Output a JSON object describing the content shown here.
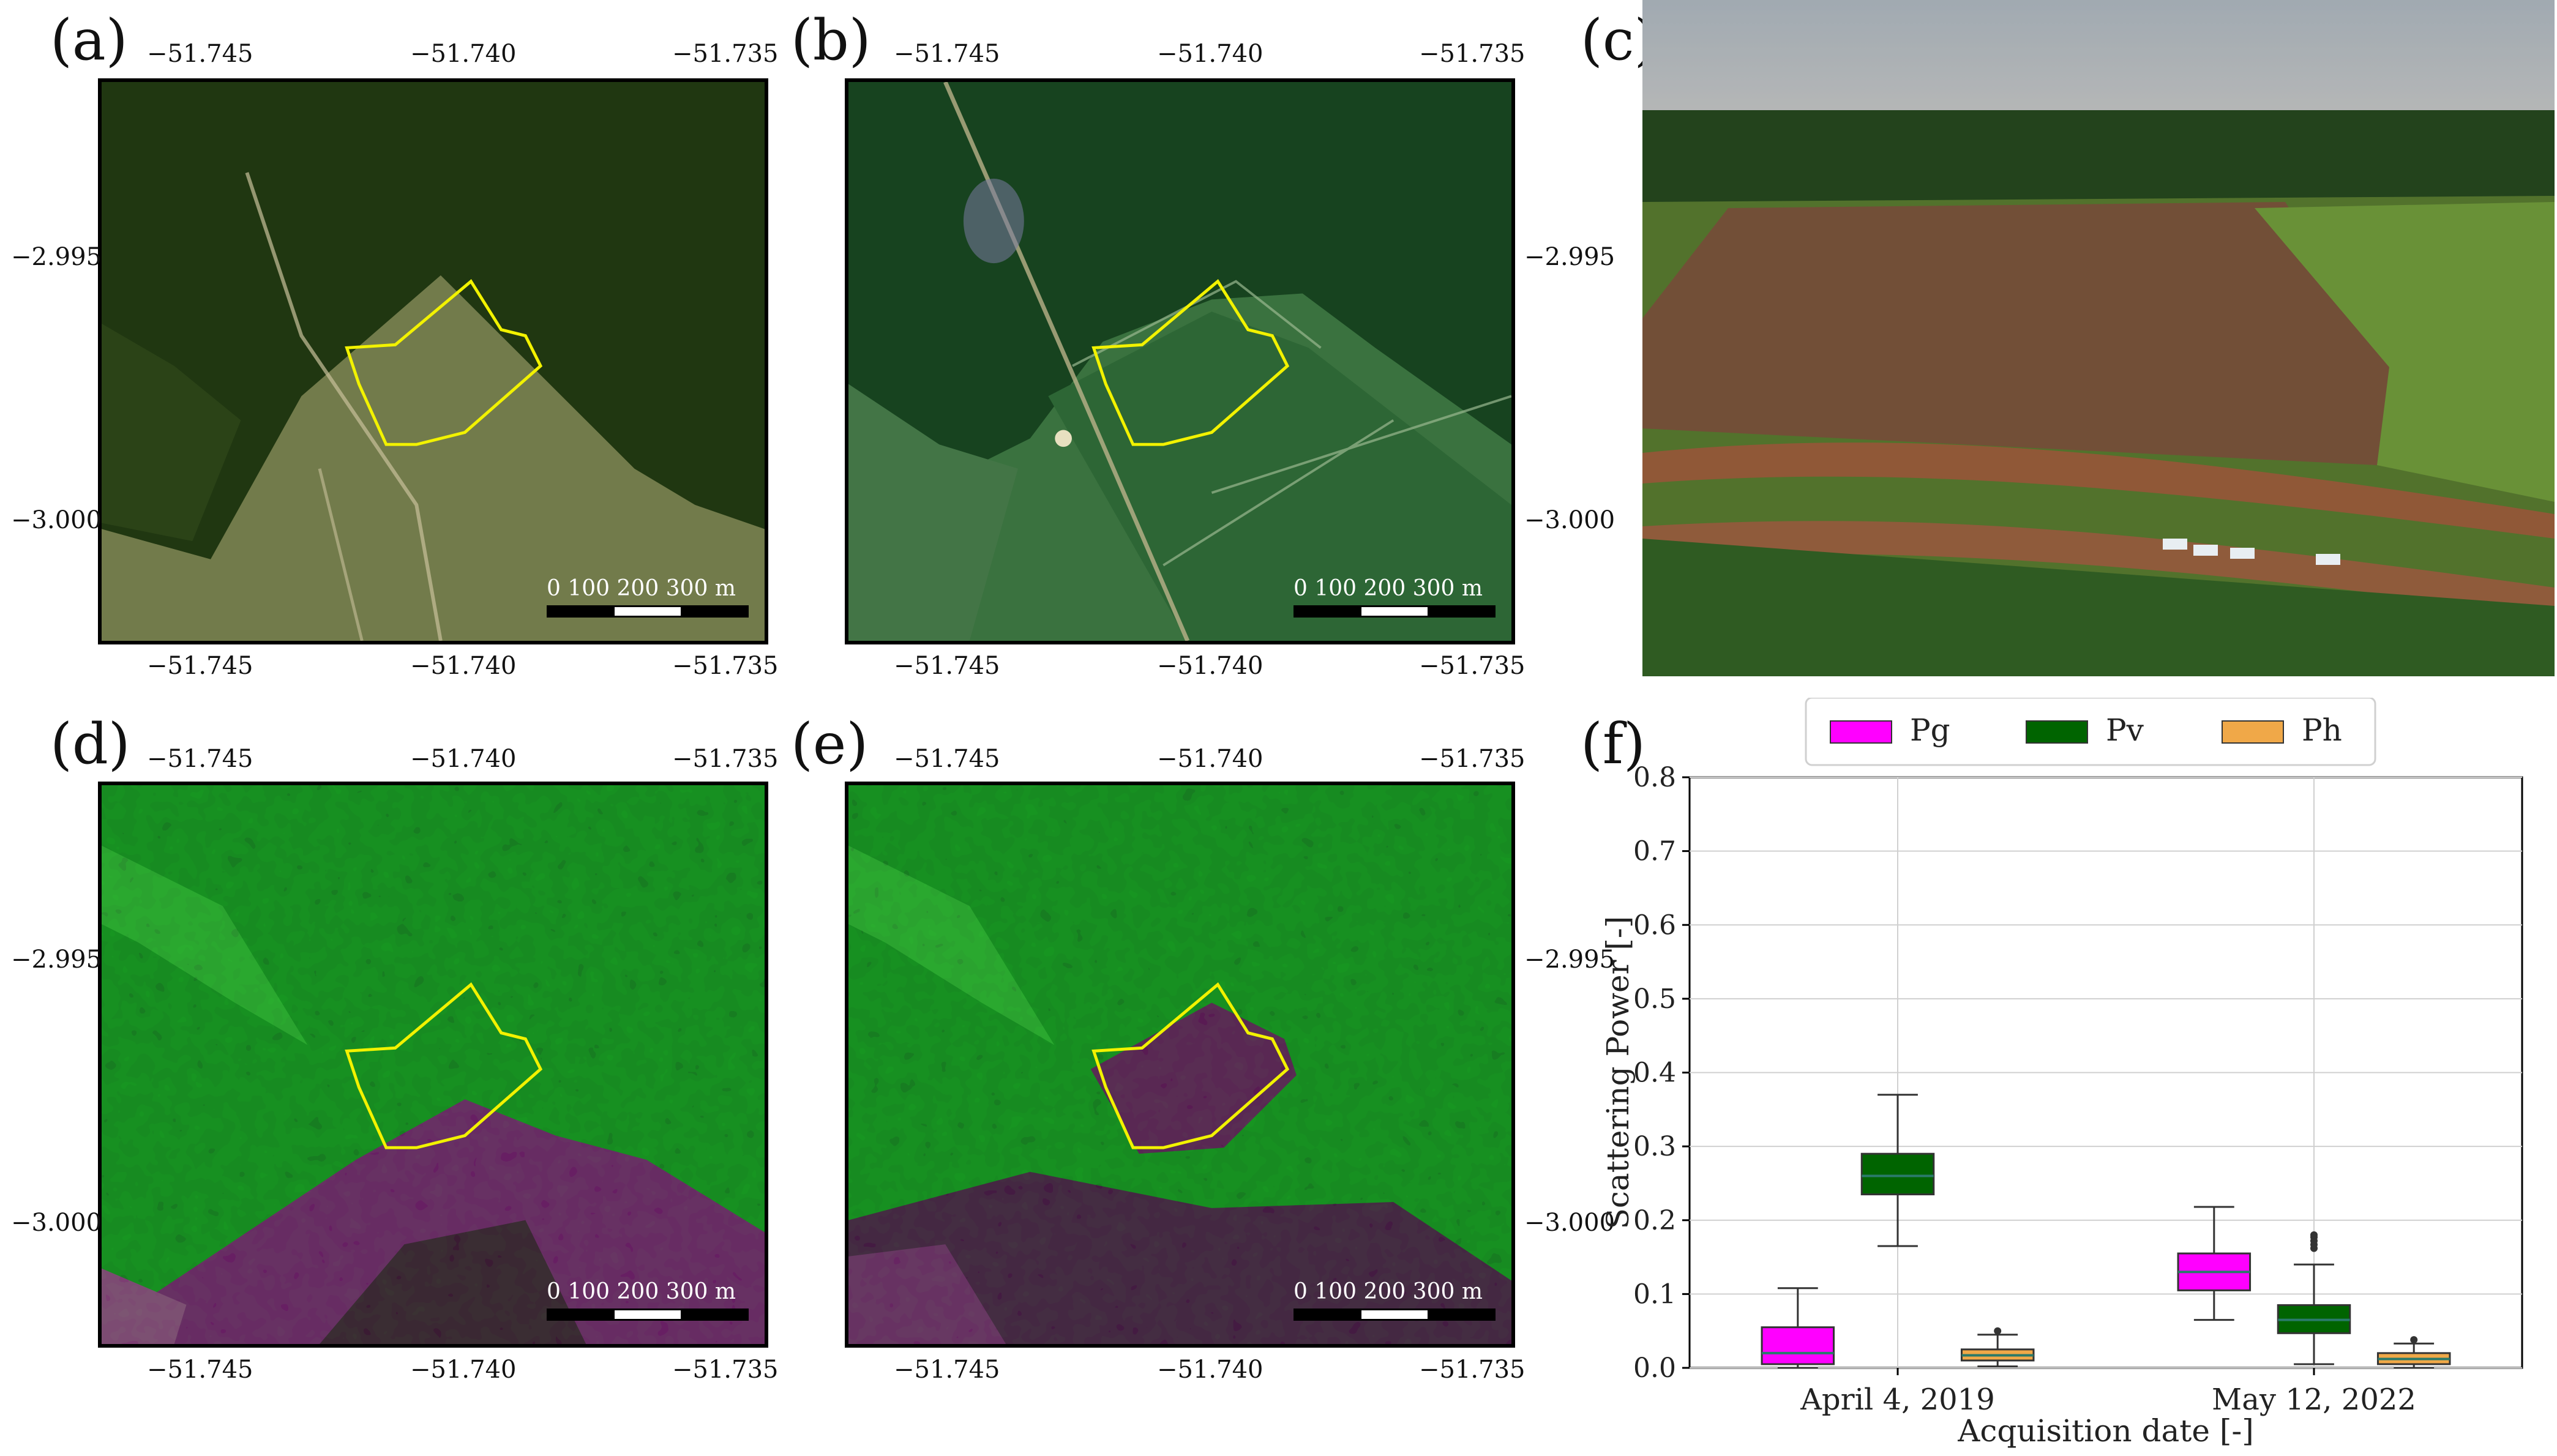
{
  "panels": {
    "a": "(a)",
    "b": "(b)",
    "c": "(c)",
    "d": "(d)",
    "e": "(e)",
    "f": "(f)"
  },
  "map_axes": {
    "x_ticks": [
      "−51.745",
      "−51.740",
      "−51.735"
    ],
    "y_ticks": [
      "−2.995",
      "−3.000"
    ]
  },
  "scalebar": {
    "labels": "0   100 200 300 m"
  },
  "colors": {
    "forest_dark": "#2b4a17",
    "forest_sentinel": "#1f5a2a",
    "pasture": "#8a9a55",
    "aoi_outline": "#f2f200",
    "sar_green": "#25c233",
    "sar_magenta": "#a0309a",
    "pg": "#ff00ff",
    "pv": "#006400",
    "ph": "#f0a848"
  },
  "chart_data": {
    "type": "box",
    "xlabel": "Acquisition date [-]",
    "ylabel": "Scattering Power [-]",
    "ylim": [
      0.0,
      0.8
    ],
    "yticks": [
      "0.0",
      "0.1",
      "0.2",
      "0.3",
      "0.4",
      "0.5",
      "0.6",
      "0.7",
      "0.8"
    ],
    "categories": [
      "April 4, 2019",
      "May 12, 2022"
    ],
    "legend_position": "top",
    "series": [
      {
        "name": "Pg",
        "boxes": [
          {
            "whisker_low": 0.0,
            "q1": 0.005,
            "median": 0.02,
            "q3": 0.055,
            "whisker_high": 0.108,
            "outliers": []
          },
          {
            "whisker_low": 0.065,
            "q1": 0.105,
            "median": 0.13,
            "q3": 0.155,
            "whisker_high": 0.218,
            "outliers": []
          }
        ]
      },
      {
        "name": "Pv",
        "boxes": [
          {
            "whisker_low": 0.165,
            "q1": 0.235,
            "median": 0.26,
            "q3": 0.29,
            "whisker_high": 0.37,
            "outliers": []
          },
          {
            "whisker_low": 0.005,
            "q1": 0.047,
            "median": 0.065,
            "q3": 0.085,
            "whisker_high": 0.14,
            "outliers": [
              0.162,
              0.167,
              0.172,
              0.177,
              0.18
            ]
          }
        ]
      },
      {
        "name": "Ph",
        "boxes": [
          {
            "whisker_low": 0.002,
            "q1": 0.01,
            "median": 0.017,
            "q3": 0.025,
            "whisker_high": 0.045,
            "outliers": [
              0.05
            ]
          },
          {
            "whisker_low": 0.0,
            "q1": 0.005,
            "median": 0.012,
            "q3": 0.02,
            "whisker_high": 0.033,
            "outliers": [
              0.038
            ]
          }
        ]
      }
    ]
  }
}
